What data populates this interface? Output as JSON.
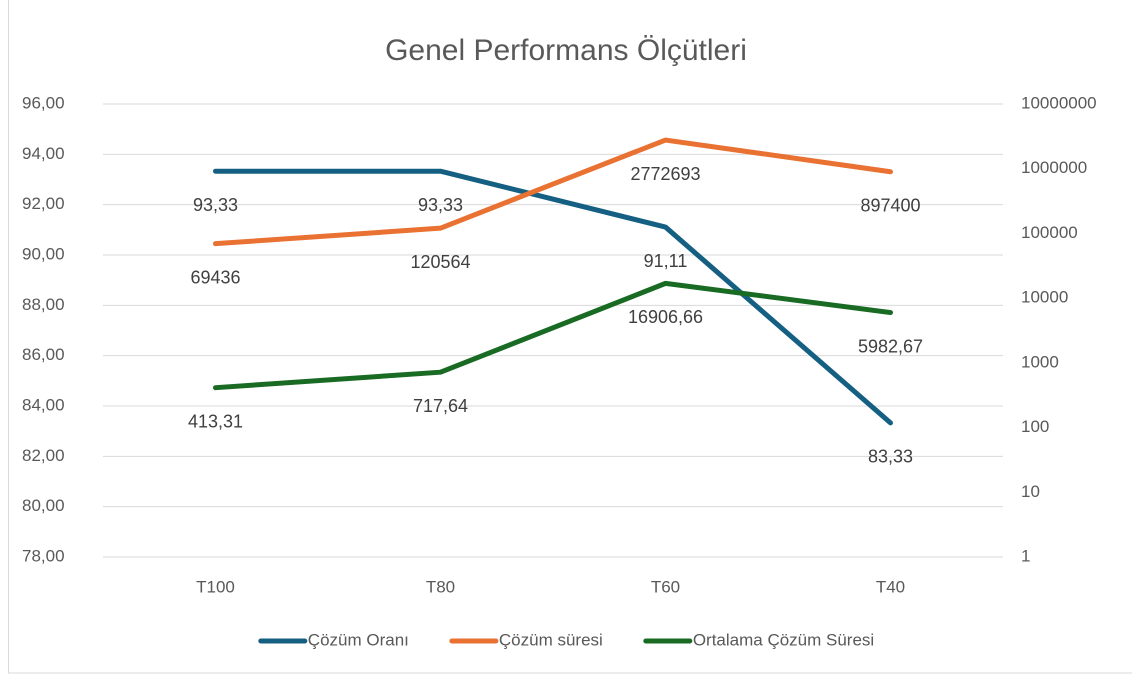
{
  "chart_data": {
    "type": "line",
    "title": "Genel Performans Ölçütleri",
    "categories": [
      "T100",
      "T80",
      "T60",
      "T40"
    ],
    "series": [
      {
        "name": "Çözüm Oranı",
        "color": "#156082",
        "values": [
          93.33,
          93.33,
          91.11,
          83.33
        ],
        "value_labels": [
          "93,33",
          "93,33",
          "91,11",
          "83,33"
        ]
      },
      {
        "name": "Çözüm süresi",
        "color": "#e97132",
        "axis": "y2",
        "values": [
          69436,
          120564,
          2772693,
          897400
        ]
      },
      {
        "name": "Ortalama Çözüm Süresi",
        "color": "#196b24",
        "axis": "y2",
        "values": [
          413.31,
          717.64,
          16906.66,
          5982.67
        ],
        "value_labels": [
          "413,31",
          "717,64",
          "16906,66",
          "5982,67"
        ]
      }
    ],
    "ylim": [
      78,
      96
    ],
    "yticks": [
      {
        "value": 78,
        "label": "78,00"
      },
      {
        "value": 80,
        "label": "80,00"
      },
      {
        "value": 82,
        "label": "82,00"
      },
      {
        "value": 84,
        "label": "84,00"
      },
      {
        "value": 86,
        "label": "86,00"
      },
      {
        "value": 88,
        "label": "88,00"
      },
      {
        "value": 90,
        "label": "90,00"
      },
      {
        "value": 92,
        "label": "92,00"
      },
      {
        "value": 94,
        "label": "94,00"
      },
      {
        "value": 96,
        "label": "96,00"
      }
    ],
    "y2lim": [
      1,
      10000000
    ],
    "y2ticks": [
      1,
      10,
      100,
      1000,
      10000,
      100000,
      1000000,
      10000000
    ],
    "y2log": true,
    "grid": true,
    "legend": "bottom"
  }
}
